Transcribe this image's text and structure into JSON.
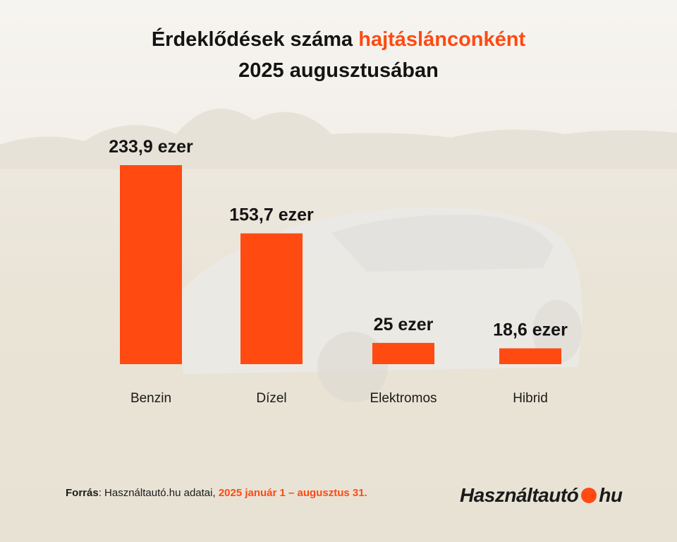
{
  "title": {
    "line1_prefix": "Érdeklődések száma",
    "line1_accent": "hajtáslánconként",
    "line2": "2025 augusztusában"
  },
  "colors": {
    "accent": "#ff4a12",
    "text": "#141414"
  },
  "chart_data": {
    "type": "bar",
    "categories": [
      "Benzin",
      "Dízel",
      "Elektromos",
      "Hibrid"
    ],
    "values": [
      233.9,
      153.7,
      25,
      18.6
    ],
    "data_labels": [
      "233,9 ezer",
      "153,7 ezer",
      "25 ezer",
      "18,6 ezer"
    ],
    "ylim": [
      0,
      233.9
    ],
    "grid": false,
    "legend": "none"
  },
  "footer": {
    "source_label": "Forrás",
    "source_text": ": Használtautó.hu adatai, ",
    "period": "2025 január 1 – augusztus 31."
  },
  "logo": {
    "left": "Használtautó",
    "right": "hu"
  }
}
